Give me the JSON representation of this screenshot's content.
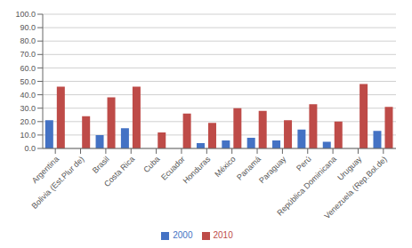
{
  "chart_data": {
    "type": "bar",
    "categories": [
      "Argentina",
      "Bolivia (Est.Plur de)",
      "Brasil",
      "Costa Rica",
      "Cuba",
      "Ecuador",
      "Honduras",
      "México",
      "Panamá",
      "Paraguay",
      "Perú",
      "República Dominicana",
      "Uruguay",
      "Venezuela (Rep.Bol.de)"
    ],
    "series": [
      {
        "name": "2000",
        "color": "#4472C4",
        "values": [
          21,
          0,
          10,
          15,
          0,
          0,
          4,
          6,
          8,
          6,
          14,
          5,
          0,
          13
        ]
      },
      {
        "name": "2010",
        "color": "#BE4B48",
        "values": [
          46,
          24,
          38,
          46,
          12,
          26,
          19,
          30,
          28,
          21,
          33,
          20,
          48,
          31
        ]
      }
    ],
    "ylim": [
      0,
      100
    ],
    "yticks": [
      {
        "value": 0,
        "label": "0.0"
      },
      {
        "value": 10,
        "label": "10.0"
      },
      {
        "value": 20,
        "label": "20.0"
      },
      {
        "value": 30,
        "label": "30.0"
      },
      {
        "value": 40,
        "label": "40.0"
      },
      {
        "value": 50,
        "label": "50.0"
      },
      {
        "value": 60,
        "label": "60.0"
      },
      {
        "value": 70,
        "label": "70.0"
      },
      {
        "value": 80,
        "label": "80.0"
      },
      {
        "value": 90,
        "label": "90.0"
      },
      {
        "value": 100,
        "label": "100.0"
      }
    ],
    "grid": true,
    "legend": "bottom"
  }
}
